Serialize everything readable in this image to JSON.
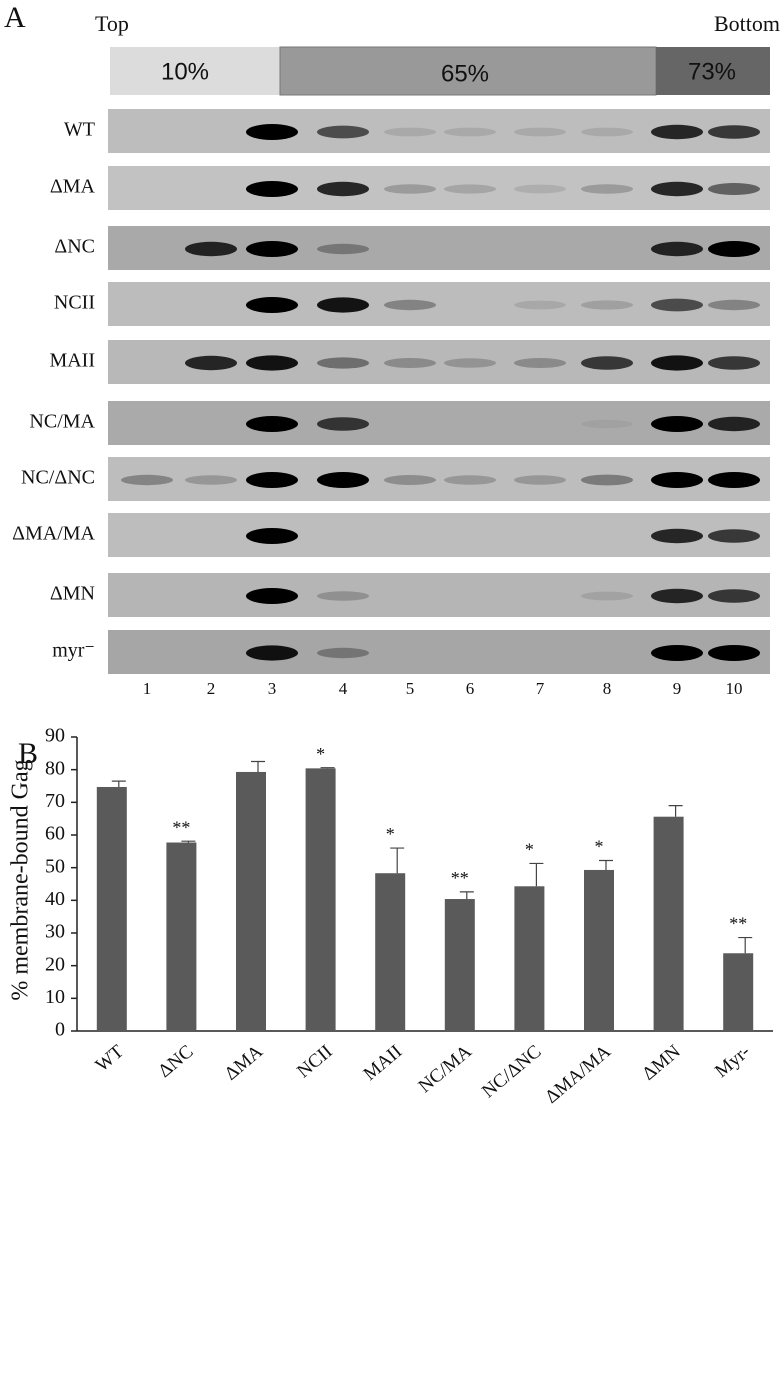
{
  "panel_a": {
    "label": "A",
    "top": "Top",
    "bottom": "Bottom",
    "gradient": [
      "10%",
      "65%",
      "73%"
    ],
    "rows": [
      "WT",
      "ΔMA",
      "ΔNC",
      "NCII",
      "MAII",
      "NC/MA",
      "NC/ΔNC",
      "ΔMA/MA",
      "ΔMN",
      "myr⁻"
    ],
    "lanes": [
      "1",
      "2",
      "3",
      "4",
      "5",
      "6",
      "7",
      "8",
      "9",
      "10"
    ]
  },
  "chart_data": {
    "type": "bar",
    "panel_label": "B",
    "ylabel": "% membrane-bound Gag",
    "categories": [
      "WT",
      "ΔNC",
      "ΔMA",
      "NCII",
      "MAII",
      "NC/MA",
      "NC/ΔNC",
      "ΔMA/MA",
      "ΔMN",
      "Myr-"
    ],
    "values": [
      74.7,
      57.7,
      79.3,
      80.4,
      48.3,
      40.4,
      44.3,
      49.3,
      65.6,
      23.8
    ],
    "errors": [
      1.8,
      0.4,
      3.2,
      0.2,
      7.7,
      2.2,
      7.0,
      2.9,
      3.4,
      4.8
    ],
    "annotations": [
      null,
      "**",
      null,
      "*",
      "*",
      "**",
      "*",
      "*",
      null,
      "**"
    ],
    "color": "#5a5a5a",
    "ylim": [
      0,
      90
    ],
    "yticks": [
      0,
      10,
      20,
      30,
      40,
      50,
      60,
      70,
      80,
      90
    ]
  }
}
